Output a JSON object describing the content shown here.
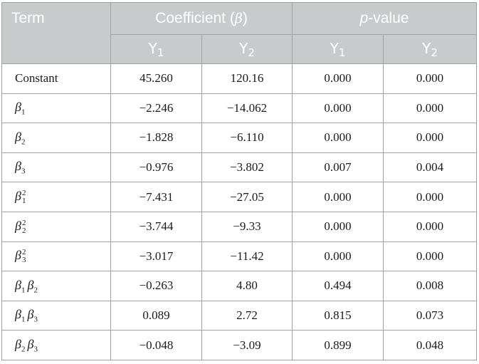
{
  "header": {
    "term": "Term",
    "coef_prefix": "Coefficient (",
    "coef_symbol": "β",
    "coef_suffix": ")",
    "p_italic": "p",
    "p_rest": "-value",
    "y_letter": "Y",
    "y1_sub": "1",
    "y2_sub": "2"
  },
  "rows": [
    {
      "term": {
        "base": "Constant"
      },
      "coef_y1": "45.260",
      "coef_y2": "120.16",
      "p_y1": "0.000",
      "p_y2": "0.000"
    },
    {
      "term": {
        "sym": "β",
        "sub": "1"
      },
      "coef_y1": "−2.246",
      "coef_y2": "−14.062",
      "p_y1": "0.000",
      "p_y2": "0.000"
    },
    {
      "term": {
        "sym": "β",
        "sub": "2"
      },
      "coef_y1": "−1.828",
      "coef_y2": "−6.110",
      "p_y1": "0.000",
      "p_y2": "0.000"
    },
    {
      "term": {
        "sym": "β",
        "sub": "3"
      },
      "coef_y1": "−0.976",
      "coef_y2": "−3.802",
      "p_y1": "0.007",
      "p_y2": "0.004"
    },
    {
      "term": {
        "sym": "β",
        "sub": "1",
        "sup": "2"
      },
      "coef_y1": "−7.431",
      "coef_y2": "−27.05",
      "p_y1": "0.000",
      "p_y2": "0.000"
    },
    {
      "term": {
        "sym": "β",
        "sub": "2",
        "sup": "2"
      },
      "coef_y1": "−3.744",
      "coef_y2": "−9.33",
      "p_y1": "0.000",
      "p_y2": "0.000"
    },
    {
      "term": {
        "sym": "β",
        "sub": "3",
        "sup": "2"
      },
      "coef_y1": "−3.017",
      "coef_y2": "−11.42",
      "p_y1": "0.000",
      "p_y2": "0.000"
    },
    {
      "term": {
        "sym": "β",
        "sub": "1",
        "sym2": "β",
        "sub2": "2"
      },
      "coef_y1": "−0.263",
      "coef_y2": "4.80",
      "p_y1": "0.494",
      "p_y2": "0.008"
    },
    {
      "term": {
        "sym": "β",
        "sub": "1",
        "sym2": "β",
        "sub2": "3"
      },
      "coef_y1": "0.089",
      "coef_y2": "2.72",
      "p_y1": "0.815",
      "p_y2": "0.073"
    },
    {
      "term": {
        "sym": "β",
        "sub": "2",
        "sym2": "β",
        "sub2": "3"
      },
      "coef_y1": "−0.048",
      "coef_y2": "−3.09",
      "p_y1": "0.899",
      "p_y2": "0.048"
    }
  ]
}
